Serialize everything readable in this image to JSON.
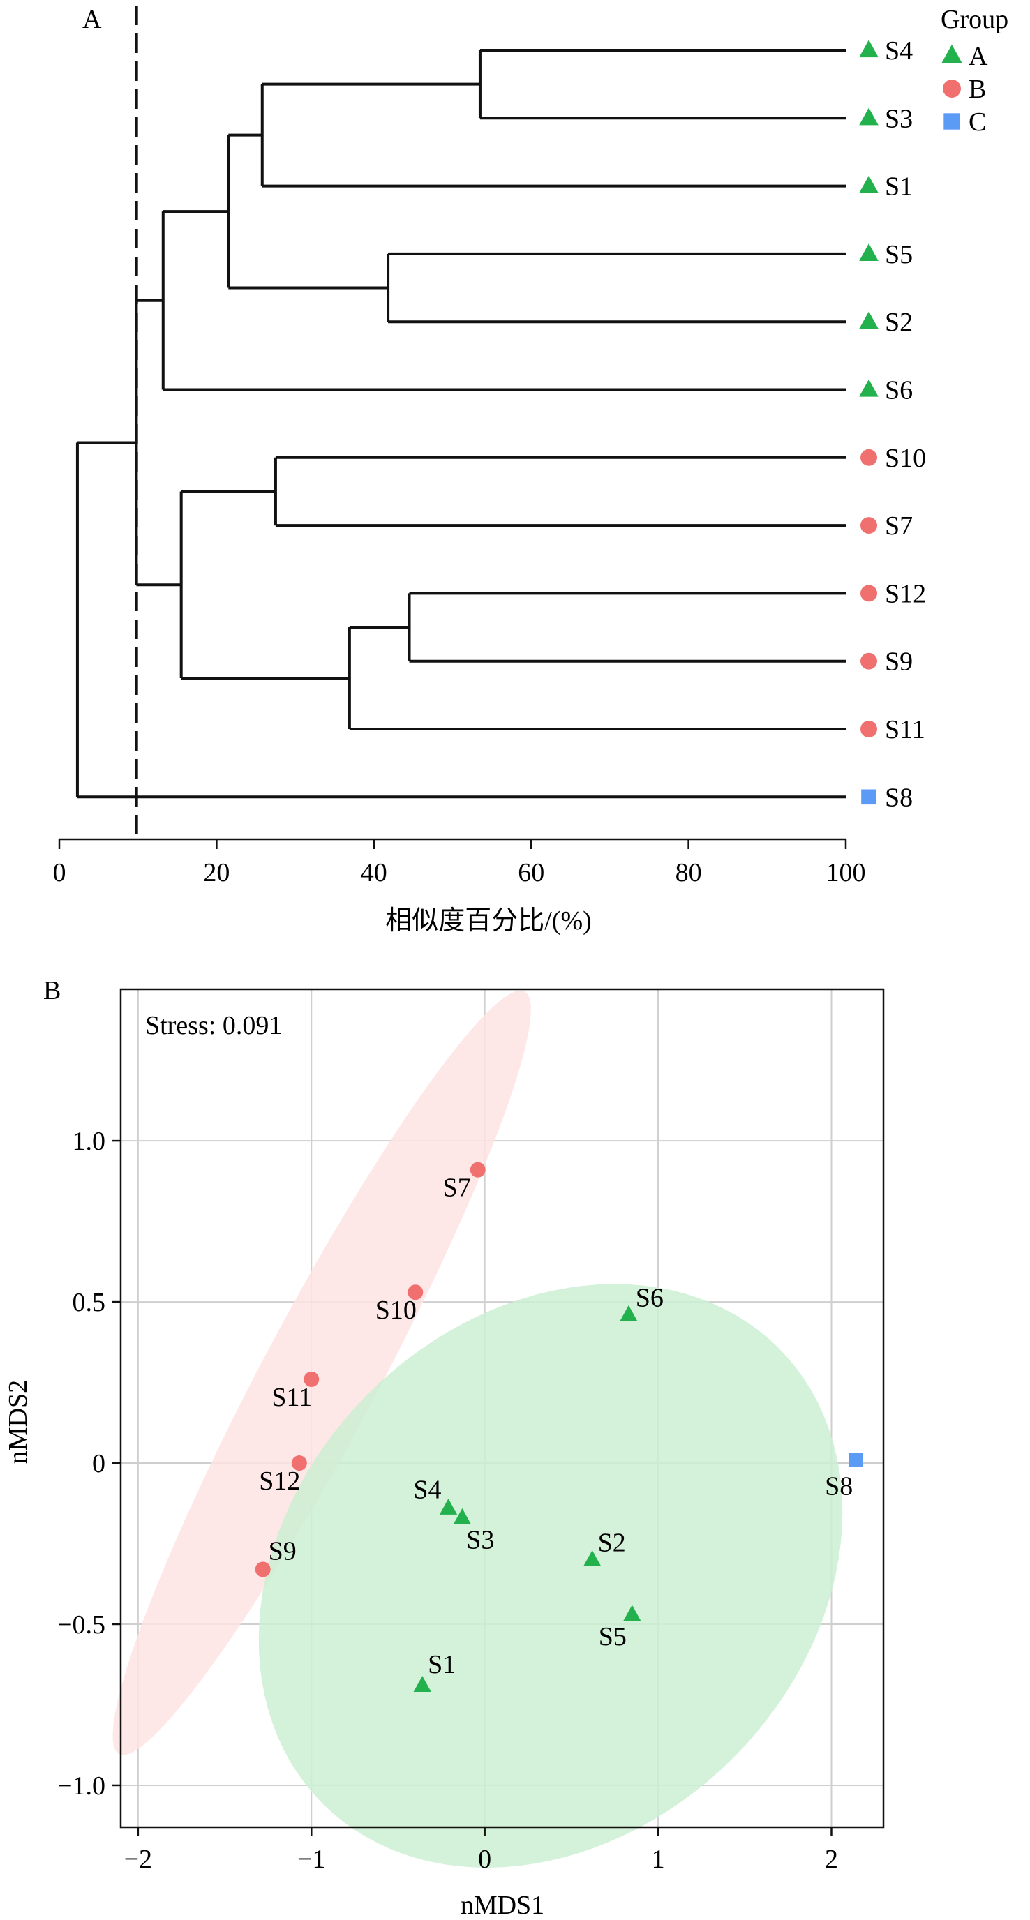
{
  "colors": {
    "A": "#22b14c",
    "B": "#f07070",
    "C": "#5b9bf5",
    "line": "#111111",
    "grid": "#cfcfcf",
    "ellipse_A": "#cdeed2",
    "ellipse_B": "#fde4e3"
  },
  "chart_data": [
    {
      "panel_label": "A",
      "type": "dendrogram",
      "xlabel": "相似度百分比/(%)",
      "xlim": [
        0,
        100
      ],
      "xticks": [
        0,
        20,
        40,
        60,
        80,
        100
      ],
      "cut_line_x": 9.8,
      "legend": {
        "title": "Group",
        "placement": "top-right",
        "entries": [
          {
            "label": "A",
            "marker": "triangle"
          },
          {
            "label": "B",
            "marker": "circle"
          },
          {
            "label": "C",
            "marker": "square"
          }
        ]
      },
      "leaves": [
        {
          "name": "S4",
          "group": "A"
        },
        {
          "name": "S3",
          "group": "A"
        },
        {
          "name": "S1",
          "group": "A"
        },
        {
          "name": "S5",
          "group": "A"
        },
        {
          "name": "S2",
          "group": "A"
        },
        {
          "name": "S6",
          "group": "A"
        },
        {
          "name": "S10",
          "group": "B"
        },
        {
          "name": "S7",
          "group": "B"
        },
        {
          "name": "S12",
          "group": "B"
        },
        {
          "name": "S9",
          "group": "B"
        },
        {
          "name": "S11",
          "group": "B"
        },
        {
          "name": "S8",
          "group": "C"
        }
      ],
      "merges": [
        {
          "id": "m1",
          "children": [
            "S4",
            "S3"
          ],
          "similarity": 53.5
        },
        {
          "id": "m2",
          "children": [
            "m1",
            "S1"
          ],
          "similarity": 25.8
        },
        {
          "id": "m3",
          "children": [
            "S5",
            "S2"
          ],
          "similarity": 41.8
        },
        {
          "id": "m4",
          "children": [
            "m2",
            "m3"
          ],
          "similarity": 21.5
        },
        {
          "id": "m5",
          "children": [
            "m4",
            "S6"
          ],
          "similarity": 13.2
        },
        {
          "id": "m6",
          "children": [
            "S10",
            "S7"
          ],
          "similarity": 27.5
        },
        {
          "id": "m7",
          "children": [
            "S12",
            "S9"
          ],
          "similarity": 44.5
        },
        {
          "id": "m8",
          "children": [
            "m7",
            "S11"
          ],
          "similarity": 36.9
        },
        {
          "id": "m9",
          "children": [
            "m6",
            "m8"
          ],
          "similarity": 15.5
        },
        {
          "id": "m10",
          "children": [
            "m5",
            "m9"
          ],
          "similarity": 9.8
        },
        {
          "id": "m11",
          "children": [
            "m10",
            "S8"
          ],
          "similarity": 2.3
        }
      ]
    },
    {
      "panel_label": "B",
      "type": "scatter",
      "annotation": "Stress: 0.091",
      "xlabel": "nMDS1",
      "ylabel": "nMDS2",
      "xlim": [
        -2.1,
        2.3
      ],
      "ylim": [
        -1.13,
        1.47
      ],
      "xticks": [
        -2,
        -1,
        0,
        1,
        2
      ],
      "yticks": [
        -1.0,
        -0.5,
        0,
        0.5,
        1.0
      ],
      "ytick_labels": [
        "−1.0",
        "−0.5",
        "0",
        "0.5",
        "1.0"
      ],
      "xtick_labels": [
        "−2",
        "−1",
        "0",
        "1",
        "2"
      ],
      "grid": true,
      "points": [
        {
          "name": "S7",
          "group": "B",
          "x": -0.04,
          "y": 0.91
        },
        {
          "name": "S10",
          "group": "B",
          "x": -0.4,
          "y": 0.53
        },
        {
          "name": "S11",
          "group": "B",
          "x": -1.0,
          "y": 0.26
        },
        {
          "name": "S12",
          "group": "B",
          "x": -1.07,
          "y": 0.0
        },
        {
          "name": "S9",
          "group": "B",
          "x": -1.28,
          "y": -0.33
        },
        {
          "name": "S6",
          "group": "A",
          "x": 0.83,
          "y": 0.46
        },
        {
          "name": "S4",
          "group": "A",
          "x": -0.21,
          "y": -0.14
        },
        {
          "name": "S3",
          "group": "A",
          "x": -0.13,
          "y": -0.17
        },
        {
          "name": "S2",
          "group": "A",
          "x": 0.62,
          "y": -0.3
        },
        {
          "name": "S5",
          "group": "A",
          "x": 0.85,
          "y": -0.47
        },
        {
          "name": "S1",
          "group": "A",
          "x": -0.36,
          "y": -0.69
        },
        {
          "name": "S8",
          "group": "C",
          "x": 2.14,
          "y": 0.01
        }
      ],
      "ellipses": [
        {
          "group": "B",
          "cx": -0.94,
          "cy": 0.28,
          "rx": 1.34,
          "ry": 0.18,
          "angle_deg": 62
        },
        {
          "group": "A",
          "cx": 0.38,
          "cy": -0.35,
          "rx": 1.0,
          "ry": 0.8,
          "angle_deg": 45
        }
      ]
    }
  ]
}
